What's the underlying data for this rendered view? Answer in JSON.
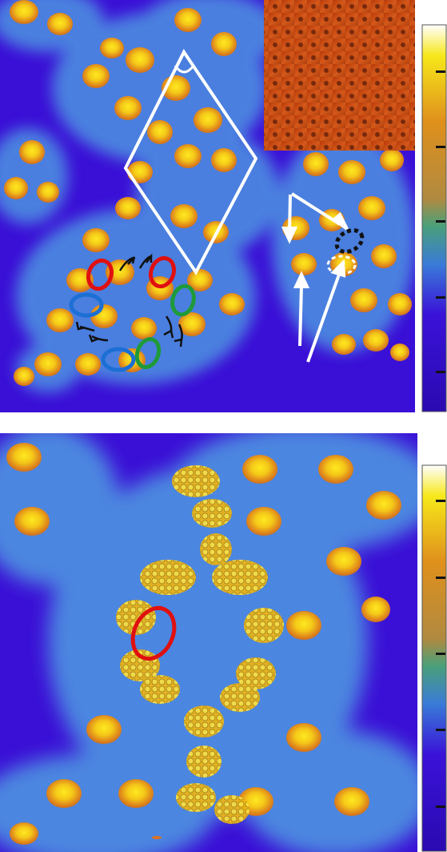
{
  "figure": {
    "panels": [
      {
        "name": "top-stm-panel",
        "inset": {
          "present": true
        },
        "annotations": {
          "lattice_rhombus": true,
          "angle_arc": true,
          "ring_ellipses": [
            "red",
            "red",
            "green",
            "green",
            "blue",
            "blue"
          ],
          "curved_arrows": 6,
          "white_arrows": 5,
          "dashed_ellipses": [
            "black",
            "white"
          ]
        }
      },
      {
        "name": "bottom-stm-panel",
        "molecular_model_overlay": true,
        "annotations": {
          "ellipses": [
            "red"
          ]
        }
      }
    ],
    "colorbars": [
      {
        "name": "top-colorbar",
        "ticks": 5
      },
      {
        "name": "bottom-colorbar",
        "ticks": 5
      }
    ]
  },
  "colors": {
    "background": "#3a0fd6",
    "halo": "#4d8fe0",
    "lobe_outer": "#e08a1c",
    "lobe_inner": "#f6d21a",
    "inset": "#c84a10",
    "red": "#e01010",
    "green": "#1f9a3a",
    "blue": "#1c6fd4",
    "white": "#ffffff",
    "black": "#111111"
  }
}
